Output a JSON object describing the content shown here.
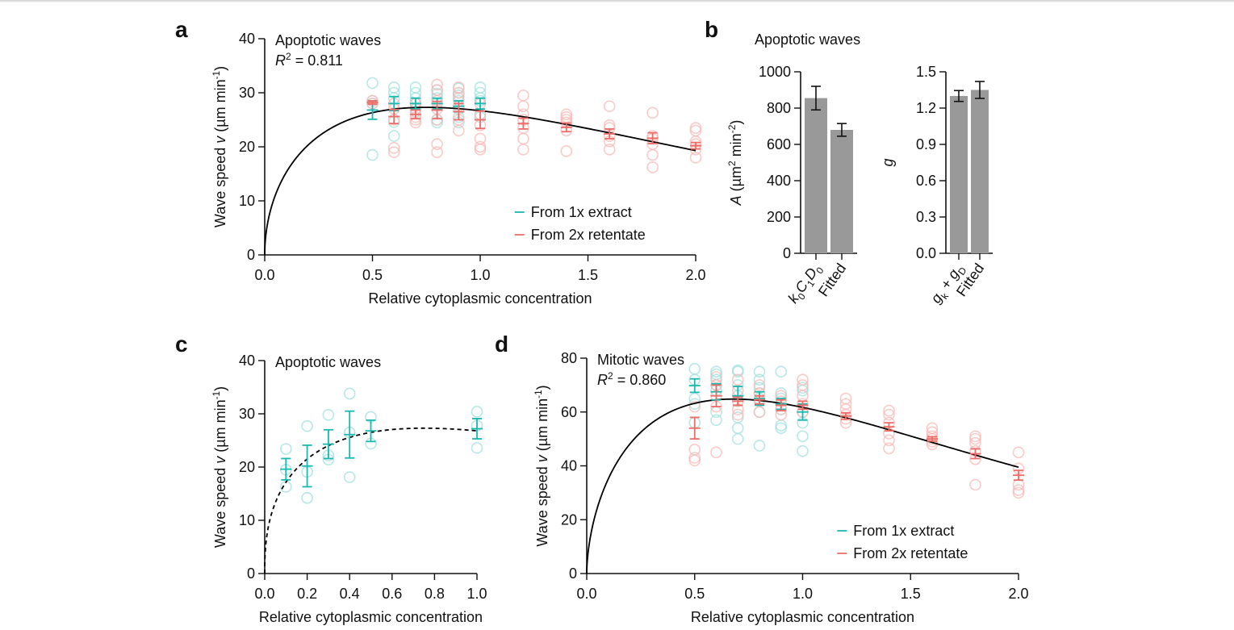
{
  "colors": {
    "extract": "#19b8b0",
    "retentate": "#ee6b66",
    "extract_light": "#9fe0dc",
    "retentate_light": "#f7b8b5",
    "bar": "#999999",
    "axis": "#111111"
  },
  "panel_labels": [
    "a",
    "b",
    "c",
    "d"
  ],
  "chart_data": [
    {
      "id": "a",
      "type": "scatter",
      "title": "Apoptotic waves",
      "r2_label": "R",
      "r2_value": " = 0.811",
      "xlabel": "Relative cytoplasmic concentration",
      "ylabel_prefix": "Wave speed ",
      "ylabel_var": "v",
      "ylabel_unit": " (µm min",
      "ylabel_exp": "-1",
      "ylabel_close": ")",
      "xlim": [
        0,
        2
      ],
      "ylim": [
        0,
        40
      ],
      "xticks": [
        "0.0",
        "0.5",
        "1.0",
        "1.5",
        "2.0"
      ],
      "xtick_values": [
        0,
        0.5,
        1.0,
        1.5,
        2.0
      ],
      "yticks": [
        "0",
        "10",
        "20",
        "30",
        "40"
      ],
      "ytick_values": [
        0,
        10,
        20,
        30,
        40
      ],
      "legend": [
        {
          "label": "From 1x extract",
          "series": "extract"
        },
        {
          "label": "From 2x retentate",
          "series": "retentate"
        }
      ],
      "legend_position": "bottom-right",
      "fit": {
        "style": "solid",
        "peak_x": 0.75,
        "peak_y": 27.3,
        "end_y": 19.3
      },
      "series": [
        {
          "name": "From 1x extract",
          "key": "extract",
          "points": [
            {
              "x": 0.5,
              "mean": 26.8,
              "err": 1.7,
              "raw": [
                31.8,
                28.5,
                28.0,
                18.5
              ]
            },
            {
              "x": 0.6,
              "mean": 28.0,
              "err": 1.3,
              "raw": [
                31.0,
                30.0,
                29.0,
                24.6,
                22.0
              ]
            },
            {
              "x": 0.7,
              "mean": 28.0,
              "err": 1.0,
              "raw": [
                31.0,
                30.0,
                29.0,
                28.0,
                27.0,
                26.5
              ]
            },
            {
              "x": 0.8,
              "mean": 28.0,
              "err": 1.0,
              "raw": [
                30.5,
                29.8,
                29.0,
                28.0,
                25.0,
                24.5
              ]
            },
            {
              "x": 0.9,
              "mean": 27.5,
              "err": 1.0,
              "raw": [
                30.8,
                30.0,
                29.5,
                28.5,
                27.0,
                25.5,
                24.5
              ]
            },
            {
              "x": 1.0,
              "mean": 28.0,
              "err": 1.0,
              "raw": [
                31.0,
                30.0,
                29.0,
                28.5,
                26.0,
                25.5
              ]
            }
          ]
        },
        {
          "name": "From 2x retentate",
          "key": "retentate",
          "points": [
            {
              "x": 0.5,
              "mean": 28.2,
              "err": 0.3,
              "raw": [
                28.5,
                28.0
              ]
            },
            {
              "x": 0.6,
              "mean": 25.6,
              "err": 1.3,
              "raw": [
                28.0,
                27.0,
                25.0,
                19.8,
                19.0
              ]
            },
            {
              "x": 0.7,
              "mean": 26.0,
              "err": 0.8,
              "raw": [
                28.0,
                27.0,
                25.5,
                25.0,
                24.5
              ]
            },
            {
              "x": 0.8,
              "mean": 26.8,
              "err": 1.6,
              "raw": [
                31.5,
                30.5,
                28.5,
                27.0,
                25.0,
                20.5,
                19.0
              ]
            },
            {
              "x": 0.9,
              "mean": 26.5,
              "err": 1.5,
              "raw": [
                31.0,
                30.0,
                29.0,
                27.5,
                25.0,
                23.0
              ]
            },
            {
              "x": 1.0,
              "mean": 25.0,
              "err": 1.6,
              "raw": [
                28.0,
                26.0,
                24.0,
                21.5,
                20.0,
                19.5
              ]
            },
            {
              "x": 1.2,
              "mean": 24.3,
              "err": 1.0,
              "raw": [
                29.5,
                27.5,
                26.0,
                25.0,
                23.5,
                21.5,
                19.5
              ]
            },
            {
              "x": 1.4,
              "mean": 23.6,
              "err": 0.8,
              "raw": [
                26.0,
                25.5,
                25.0,
                24.5,
                23.0,
                19.2
              ]
            },
            {
              "x": 1.6,
              "mean": 22.4,
              "err": 0.9,
              "raw": [
                27.5,
                24.0,
                23.5,
                22.0,
                21.0,
                19.5
              ]
            },
            {
              "x": 1.8,
              "mean": 21.6,
              "err": 1.0,
              "raw": [
                26.3,
                22.0,
                21.5,
                20.5,
                18.5,
                16.2
              ]
            },
            {
              "x": 2.0,
              "mean": 20.2,
              "err": 0.6,
              "raw": [
                23.5,
                23.0,
                21.0,
                20.5,
                19.5,
                18.0
              ]
            }
          ]
        }
      ]
    },
    {
      "id": "b1",
      "type": "bar",
      "title": "Apoptotic waves",
      "ylabel_var": "A",
      "ylabel_unit": " (µm",
      "ylabel_exp1": "2",
      "ylabel_mid": " min",
      "ylabel_exp2": "-2",
      "ylabel_close": ")",
      "ylim": [
        0,
        1000
      ],
      "yticks": [
        "0",
        "200",
        "400",
        "600",
        "800",
        "1000"
      ],
      "ytick_values": [
        0,
        200,
        400,
        600,
        800,
        1000
      ],
      "categories": [
        {
          "parts": [
            [
              "k",
              "0"
            ],
            [
              "C",
              "1"
            ],
            [
              "D",
              "0"
            ]
          ]
        },
        {
          "label": "Fitted"
        }
      ],
      "values": [
        855,
        680
      ],
      "errors": [
        65,
        35
      ]
    },
    {
      "id": "b2",
      "type": "bar",
      "ylabel_var": "g",
      "ylim": [
        0,
        1.5
      ],
      "yticks": [
        "0.0",
        "0.3",
        "0.6",
        "0.9",
        "1.2",
        "1.5"
      ],
      "ytick_values": [
        0,
        0.3,
        0.6,
        0.9,
        1.2,
        1.5
      ],
      "categories": [
        {
          "parts": [
            [
              "g",
              "k"
            ],
            [
              " + g",
              "D"
            ]
          ]
        },
        {
          "label": "Fitted"
        }
      ],
      "values": [
        1.3,
        1.35
      ],
      "errors": [
        0.045,
        0.07
      ]
    },
    {
      "id": "c",
      "type": "scatter",
      "title": "Apoptotic waves",
      "xlabel": "Relative cytoplasmic concentration",
      "ylabel_prefix": "Wave speed ",
      "ylabel_var": "v",
      "ylabel_unit": " (µm min",
      "ylabel_exp": "-1",
      "ylabel_close": ")",
      "xlim": [
        0,
        1
      ],
      "ylim": [
        0,
        40
      ],
      "xticks": [
        "0.0",
        "0.2",
        "0.4",
        "0.6",
        "0.8",
        "1.0"
      ],
      "xtick_values": [
        0,
        0.2,
        0.4,
        0.6,
        0.8,
        1.0
      ],
      "yticks": [
        "0",
        "10",
        "20",
        "30",
        "40"
      ],
      "ytick_values": [
        0,
        10,
        20,
        30,
        40
      ],
      "fit": {
        "style": "dashed",
        "peak_x": 0.75,
        "peak_y": 27.3,
        "end_y": 26.8
      },
      "series": [
        {
          "name": "From 1x extract",
          "key": "extract",
          "points": [
            {
              "x": 0.1,
              "mean": 19.6,
              "err": 2.0,
              "raw": [
                23.4,
                19.5,
                16.3
              ]
            },
            {
              "x": 0.2,
              "mean": 20.2,
              "err": 3.9,
              "raw": [
                27.7,
                19.1,
                14.2
              ]
            },
            {
              "x": 0.3,
              "mean": 24.3,
              "err": 2.7,
              "raw": [
                29.8,
                22.2,
                21.4
              ]
            },
            {
              "x": 0.4,
              "mean": 26.1,
              "err": 4.4,
              "raw": [
                33.8,
                26.5,
                18.1
              ]
            },
            {
              "x": 0.5,
              "mean": 26.8,
              "err": 2.0,
              "raw": [
                29.4,
                24.4
              ]
            },
            {
              "x": 1.0,
              "mean": 27.2,
              "err": 1.9,
              "raw": [
                30.4,
                27.8,
                23.6
              ]
            }
          ]
        }
      ]
    },
    {
      "id": "d",
      "type": "scatter",
      "title": "Mitotic waves",
      "r2_label": "R",
      "r2_value": " = 0.860",
      "xlabel": "Relative cytoplasmic concentration",
      "ylabel_prefix": "Wave speed ",
      "ylabel_var": "v",
      "ylabel_unit": " (µm min",
      "ylabel_exp": "-1",
      "ylabel_close": ")",
      "xlim": [
        0,
        2
      ],
      "ylim": [
        0,
        80
      ],
      "xticks": [
        "0.0",
        "0.5",
        "1.0",
        "1.5",
        "2.0"
      ],
      "xtick_values": [
        0,
        0.5,
        1.0,
        1.5,
        2.0
      ],
      "yticks": [
        "0",
        "20",
        "40",
        "60",
        "80"
      ],
      "ytick_values": [
        0,
        20,
        40,
        60,
        80
      ],
      "legend": [
        {
          "label": "From 1x extract",
          "series": "extract"
        },
        {
          "label": "From 2x retentate",
          "series": "retentate"
        }
      ],
      "legend_position": "bottom-right",
      "fit": {
        "style": "solid",
        "peak_x": 0.68,
        "peak_y": 64.8,
        "end_y": 39.5
      },
      "series": [
        {
          "name": "From 1x extract",
          "key": "extract",
          "points": [
            {
              "x": 0.5,
              "mean": 69.8,
              "err": 2.5,
              "raw": [
                76.0,
                72.0,
                65.0,
                63.0,
                56.0
              ]
            },
            {
              "x": 0.6,
              "mean": 67.5,
              "err": 3.0,
              "raw": [
                75.0,
                74.0,
                72.0,
                70.0,
                68.0,
                60.0,
                57.0
              ]
            },
            {
              "x": 0.7,
              "mean": 66.0,
              "err": 3.5,
              "raw": [
                75.5,
                75.0,
                70.0,
                66.0,
                58.0,
                54.0,
                50.0
              ]
            },
            {
              "x": 0.8,
              "mean": 65.0,
              "err": 2.5,
              "raw": [
                75.0,
                72.0,
                69.0,
                67.0,
                65.0,
                60.0,
                47.5
              ]
            },
            {
              "x": 0.9,
              "mean": 63.0,
              "err": 2.0,
              "raw": [
                75.0,
                67.0,
                65.0,
                61.0,
                55.0,
                54.0
              ]
            },
            {
              "x": 1.0,
              "mean": 60.0,
              "err": 3.0,
              "raw": [
                69.0,
                68.0,
                60.0,
                56.0,
                51.0,
                45.5
              ]
            }
          ]
        },
        {
          "name": "From 2x retentate",
          "key": "retentate",
          "points": [
            {
              "x": 0.5,
              "mean": 54.0,
              "err": 4.0,
              "raw": [
                62.0,
                46.0,
                43.0,
                42.0
              ]
            },
            {
              "x": 0.6,
              "mean": 66.0,
              "err": 4.0,
              "raw": [
                73.0,
                70.0,
                66.0,
                62.0,
                45.0
              ]
            },
            {
              "x": 0.7,
              "mean": 64.0,
              "err": 1.5,
              "raw": [
                72.0,
                68.0,
                64.0,
                61.0,
                59.0
              ]
            },
            {
              "x": 0.8,
              "mean": 64.5,
              "err": 1.5,
              "raw": [
                70.0,
                67.0,
                64.0,
                60.0
              ]
            },
            {
              "x": 0.9,
              "mean": 62.5,
              "err": 2.0,
              "raw": [
                66.0,
                64.0,
                61.0,
                59.0
              ]
            },
            {
              "x": 1.0,
              "mean": 62.5,
              "err": 1.5,
              "raw": [
                72.0,
                70.0,
                66.0,
                63.0,
                60.0
              ]
            },
            {
              "x": 1.2,
              "mean": 58.5,
              "err": 1.2,
              "raw": [
                65.0,
                63.0,
                61.0,
                59.0,
                57.5,
                56.0
              ]
            },
            {
              "x": 1.4,
              "mean": 54.5,
              "err": 1.5,
              "raw": [
                60.5,
                59.0,
                56.0,
                52.0,
                49.5,
                46.5
              ]
            },
            {
              "x": 1.6,
              "mean": 50.0,
              "err": 0.8,
              "raw": [
                54.0,
                52.5,
                51.0,
                50.0,
                49.0,
                48.0
              ]
            },
            {
              "x": 1.8,
              "mean": 44.5,
              "err": 1.8,
              "raw": [
                51.0,
                50.0,
                48.5,
                45.5,
                42.5,
                33.0
              ]
            },
            {
              "x": 2.0,
              "mean": 36.5,
              "err": 1.8,
              "raw": [
                45.0,
                39.0,
                33.0,
                31.0,
                30.0
              ]
            }
          ]
        }
      ]
    }
  ]
}
